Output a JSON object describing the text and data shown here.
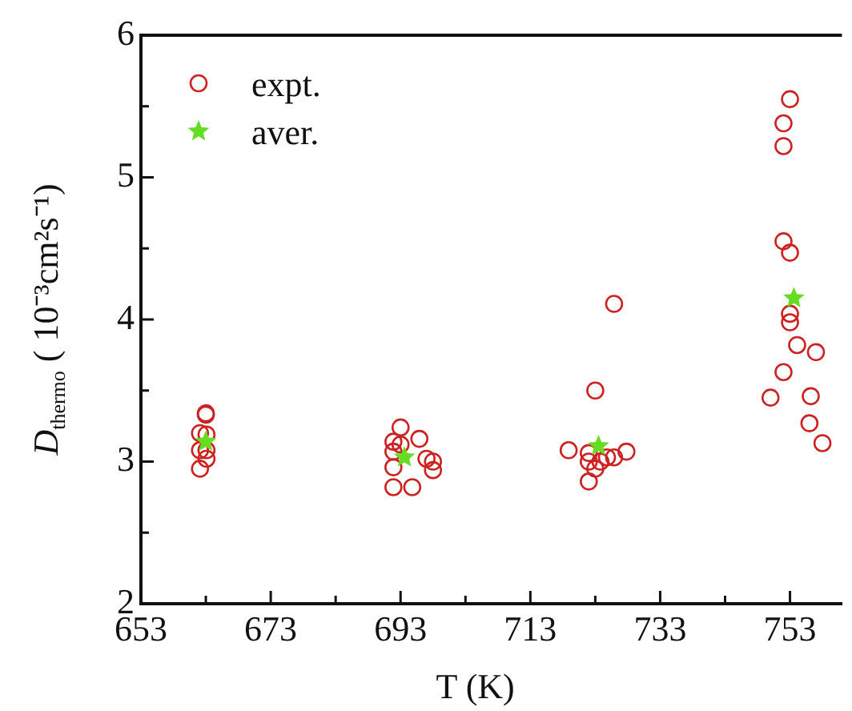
{
  "chart_data": {
    "type": "scatter",
    "xlabel": "T (K)",
    "ylabel": "D$_{thermo}$ ( 10⁻³cm²s⁻¹)",
    "xlim": [
      653,
      761
    ],
    "xticks": [
      653,
      {
        "value": 663,
        "label": null
      },
      673,
      {
        "value": 683,
        "label": null
      },
      693,
      {
        "value": 703,
        "label": null
      },
      713,
      {
        "value": 723,
        "label": null
      },
      733,
      {
        "value": 743,
        "label": null
      },
      753
    ],
    "ylim": [
      2,
      6
    ],
    "yticks": [
      2,
      {
        "value": 2.5,
        "label": null
      },
      3,
      {
        "value": 3.5,
        "label": null
      },
      4,
      {
        "value": 4.5,
        "label": null
      },
      5,
      {
        "value": 5.5,
        "label": null
      },
      6
    ],
    "legend": "top left",
    "series": [
      {
        "name": "expt.",
        "color": "#cc2222",
        "marker": "circle",
        "x": [
          663,
          663,
          662.1,
          663.1,
          662.1,
          663.1,
          663.1,
          662.1,
          691.9,
          693,
          691.9,
          693,
          691.9,
          693,
          695.9,
          697,
          698,
          698,
          691.9,
          694.8,
          725.9,
          723,
          718.9,
          722,
          722,
          723,
          723.8,
          724.8,
          725.9,
          727.8,
          722,
          753,
          752,
          752,
          752,
          753,
          753,
          753,
          754.1,
          757,
          752,
          750,
          756.2,
          756,
          758
        ],
        "values": [
          3.34,
          3.33,
          3.2,
          3.19,
          3.08,
          3.08,
          3.02,
          2.95,
          3.14,
          3.24,
          3.07,
          3.12,
          2.96,
          null,
          3.16,
          3.02,
          3,
          2.94,
          2.82,
          2.82,
          4.11,
          3.5,
          3.08,
          3.06,
          3,
          2.95,
          3,
          3.03,
          3.03,
          3.07,
          2.86,
          5.55,
          5.38,
          5.22,
          4.55,
          4.47,
          4.04,
          3.98,
          3.82,
          3.77,
          3.63,
          3.45,
          3.46,
          3.27,
          3.13
        ]
      },
      {
        "name": "aver.",
        "color": "#66dd22",
        "marker": "star",
        "x": [
          663,
          693.6,
          723.5,
          753.6
        ],
        "values": [
          3.14,
          3.03,
          3.11,
          4.15
        ]
      }
    ]
  }
}
